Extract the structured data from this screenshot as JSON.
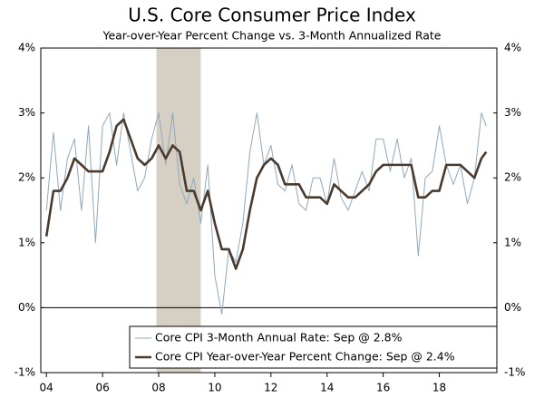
{
  "chart_data": {
    "type": "line",
    "title": "U.S. Core Consumer Price Index",
    "subtitle": "Year-over-Year Percent Change vs. 3-Month Annualized Rate",
    "x": [
      2004,
      2004.25,
      2004.5,
      2004.75,
      2005,
      2005.25,
      2005.5,
      2005.75,
      2006,
      2006.25,
      2006.5,
      2006.75,
      2007,
      2007.25,
      2007.5,
      2007.75,
      2008,
      2008.25,
      2008.5,
      2008.75,
      2009,
      2009.25,
      2009.5,
      2009.75,
      2010,
      2010.25,
      2010.5,
      2010.75,
      2011,
      2011.25,
      2011.5,
      2011.75,
      2012,
      2012.25,
      2012.5,
      2012.75,
      2013,
      2013.25,
      2013.5,
      2013.75,
      2014,
      2014.25,
      2014.5,
      2014.75,
      2015,
      2015.25,
      2015.5,
      2015.75,
      2016,
      2016.25,
      2016.5,
      2016.75,
      2017,
      2017.25,
      2017.5,
      2017.75,
      2018,
      2018.25,
      2018.5,
      2018.75,
      2019,
      2019.25,
      2019.5,
      2019.67
    ],
    "series": [
      {
        "name": "Core CPI 3-Month Annual Rate: Sep @ 2.8%",
        "color": "#8fa8bd",
        "width": 1,
        "values": [
          1.5,
          2.7,
          1.5,
          2.3,
          2.6,
          1.5,
          2.8,
          1.0,
          2.8,
          3.0,
          2.2,
          3.0,
          2.4,
          1.8,
          2.0,
          2.6,
          3.0,
          2.2,
          3.0,
          1.9,
          1.6,
          2.0,
          1.3,
          2.2,
          0.5,
          -0.1,
          0.9,
          0.7,
          1.3,
          2.4,
          3.0,
          2.2,
          2.5,
          1.9,
          1.8,
          2.2,
          1.6,
          1.5,
          2.0,
          2.0,
          1.6,
          2.3,
          1.7,
          1.5,
          1.8,
          2.1,
          1.8,
          2.6,
          2.6,
          2.1,
          2.6,
          2.0,
          2.3,
          0.8,
          2.0,
          2.1,
          2.8,
          2.2,
          1.9,
          2.2,
          1.6,
          2.0,
          3.0,
          2.8
        ]
      },
      {
        "name": "Core CPI Year-over-Year Percent Change: Sep @ 2.4%",
        "color": "#4a3a2e",
        "width": 2.6,
        "values": [
          1.1,
          1.8,
          1.8,
          2.0,
          2.3,
          2.2,
          2.1,
          2.1,
          2.1,
          2.4,
          2.8,
          2.9,
          2.6,
          2.3,
          2.2,
          2.3,
          2.5,
          2.3,
          2.5,
          2.4,
          1.8,
          1.8,
          1.5,
          1.8,
          1.3,
          0.9,
          0.9,
          0.6,
          0.9,
          1.5,
          2.0,
          2.2,
          2.3,
          2.2,
          1.9,
          1.9,
          1.9,
          1.7,
          1.7,
          1.7,
          1.6,
          1.9,
          1.8,
          1.7,
          1.7,
          1.8,
          1.9,
          2.1,
          2.2,
          2.2,
          2.2,
          2.2,
          2.2,
          1.7,
          1.7,
          1.8,
          1.8,
          2.2,
          2.2,
          2.2,
          2.1,
          2.0,
          2.3,
          2.4
        ]
      }
    ],
    "recession": {
      "start": 2007.92,
      "end": 2009.5,
      "color": "#d6d0c4"
    },
    "xlim": [
      2003.8,
      2020.05
    ],
    "xticks": [
      {
        "value": 2004,
        "label": "04"
      },
      {
        "value": 2006,
        "label": "06"
      },
      {
        "value": 2008,
        "label": "08"
      },
      {
        "value": 2010,
        "label": "10"
      },
      {
        "value": 2012,
        "label": "12"
      },
      {
        "value": 2014,
        "label": "14"
      },
      {
        "value": 2016,
        "label": "16"
      },
      {
        "value": 2018,
        "label": "18"
      }
    ],
    "ylim": [
      -1,
      4
    ],
    "yticks": [
      {
        "value": -1,
        "label": "-1%"
      },
      {
        "value": 0,
        "label": "0%"
      },
      {
        "value": 1,
        "label": "1%"
      },
      {
        "value": 2,
        "label": "2%"
      },
      {
        "value": 3,
        "label": "3%"
      },
      {
        "value": 4,
        "label": "4%"
      }
    ],
    "y2lim": [
      -1,
      4
    ],
    "y2ticks": [
      {
        "value": -1,
        "label": "-1%"
      },
      {
        "value": 0,
        "label": "0%"
      },
      {
        "value": 1,
        "label": "1%"
      },
      {
        "value": 2,
        "label": "2%"
      },
      {
        "value": 3,
        "label": "3%"
      },
      {
        "value": 4,
        "label": "4%"
      }
    ],
    "legend": "bottom-right"
  }
}
